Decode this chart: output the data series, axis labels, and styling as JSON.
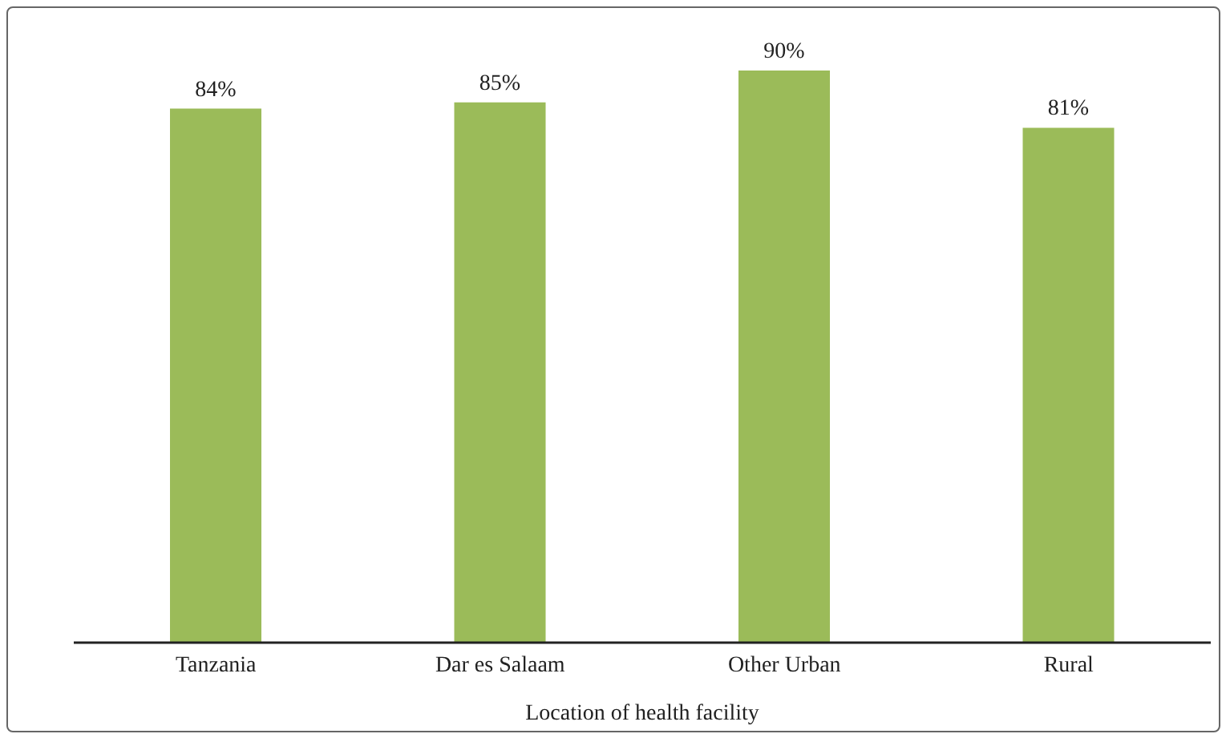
{
  "chart_data": {
    "type": "bar",
    "xlabel": "Location of health facility",
    "categories": [
      "Tanzania",
      "Dar es Salaam",
      "Other Urban",
      "Rural"
    ],
    "values": [
      84,
      85,
      90,
      81
    ],
    "value_labels": [
      "84%",
      "85%",
      "90%",
      "81%"
    ],
    "color": "#9bbb59",
    "tick_labels": "x",
    "grid": false,
    "legend": false
  }
}
